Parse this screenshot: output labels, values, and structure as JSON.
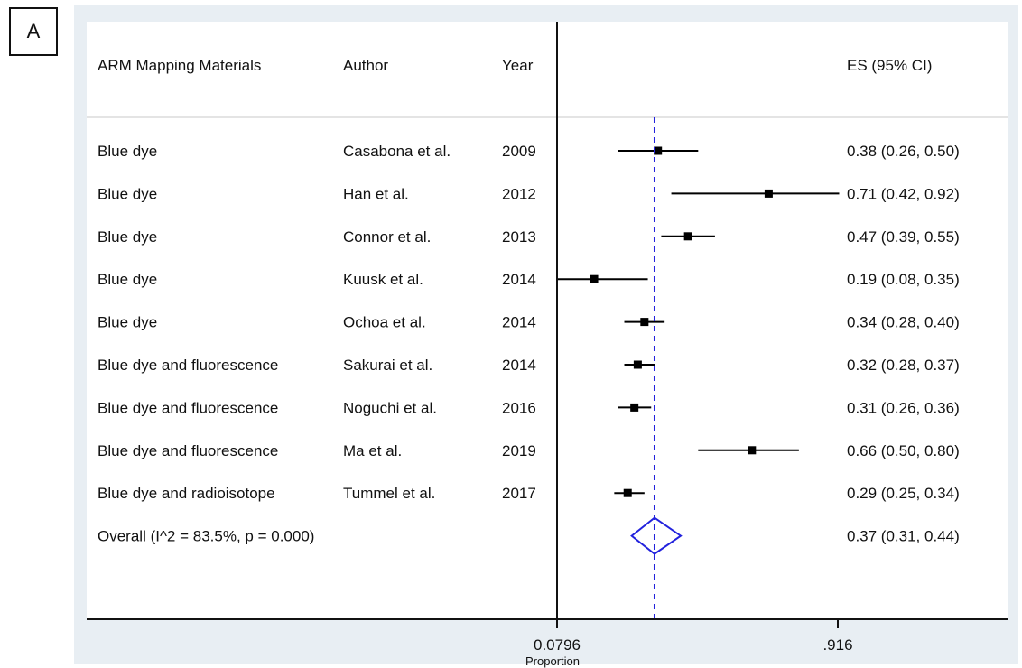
{
  "panel_label": "A",
  "colors": {
    "outer_background": "#e8eef3",
    "plot_background": "#ffffff",
    "marker": "#000000",
    "overall_line": "#2222dd",
    "diamond": "#2222dd"
  },
  "chart_data": {
    "type": "forest",
    "columns": {
      "materials": "ARM Mapping Materials",
      "author": "Author",
      "year": "Year",
      "es": "ES (95% CI)"
    },
    "studies": [
      {
        "material": "Blue dye",
        "author": "Casabona et al.",
        "year": "2009",
        "es": 0.38,
        "lo": 0.26,
        "hi": 0.5,
        "es_label": "0.38 (0.26, 0.50)"
      },
      {
        "material": "Blue dye",
        "author": "Han et al.",
        "year": "2012",
        "es": 0.71,
        "lo": 0.42,
        "hi": 0.92,
        "es_label": "0.71 (0.42, 0.92)"
      },
      {
        "material": "Blue dye",
        "author": "Connor et al.",
        "year": "2013",
        "es": 0.47,
        "lo": 0.39,
        "hi": 0.55,
        "es_label": "0.47 (0.39, 0.55)"
      },
      {
        "material": "Blue dye",
        "author": "Kuusk et al.",
        "year": "2014",
        "es": 0.19,
        "lo": 0.08,
        "hi": 0.35,
        "es_label": "0.19 (0.08, 0.35)"
      },
      {
        "material": "Blue dye",
        "author": "Ochoa et al.",
        "year": "2014",
        "es": 0.34,
        "lo": 0.28,
        "hi": 0.4,
        "es_label": "0.34 (0.28, 0.40)"
      },
      {
        "material": "Blue dye and fluorescence",
        "author": "Sakurai et al.",
        "year": "2014",
        "es": 0.32,
        "lo": 0.28,
        "hi": 0.37,
        "es_label": "0.32 (0.28, 0.37)"
      },
      {
        "material": "Blue dye and fluorescence",
        "author": "Noguchi et al.",
        "year": "2016",
        "es": 0.31,
        "lo": 0.26,
        "hi": 0.36,
        "es_label": "0.31 (0.26, 0.36)"
      },
      {
        "material": "Blue dye and fluorescence",
        "author": "Ma et al.",
        "year": "2019",
        "es": 0.66,
        "lo": 0.5,
        "hi": 0.8,
        "es_label": "0.66 (0.50, 0.80)"
      },
      {
        "material": "Blue dye and radioisotope",
        "author": "Tummel et al.",
        "year": "2017",
        "es": 0.29,
        "lo": 0.25,
        "hi": 0.34,
        "es_label": "0.29 (0.25, 0.34)"
      }
    ],
    "overall": {
      "label": "Overall  (I^2 = 83.5%, p = 0.000)",
      "es": 0.37,
      "lo": 0.31,
      "hi": 0.44,
      "es_label": "0.37 (0.31, 0.44)"
    },
    "xaxis": {
      "label": "Proportion",
      "ticks": [
        0.0796,
        0.916
      ],
      "tick_labels": [
        "0.0796",
        ".916"
      ]
    }
  }
}
